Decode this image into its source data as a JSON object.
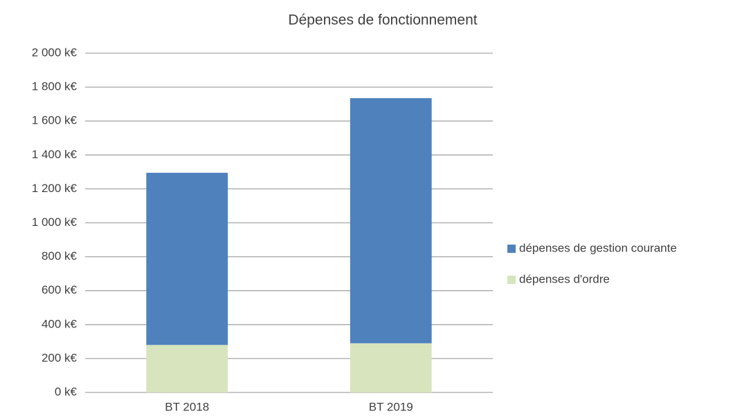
{
  "chart_data": {
    "type": "stacked_bar",
    "title": "Dépenses de fonctionnement",
    "categories": [
      "BT 2018",
      "BT 2019"
    ],
    "series": [
      {
        "name": "dépenses de gestion courante",
        "color": "#4f81bd",
        "values": [
          1015,
          1445
        ]
      },
      {
        "name": "dépenses d'ordre",
        "color": "#d7e4bd",
        "values": [
          280,
          290
        ]
      }
    ],
    "ylim": [
      0,
      2000
    ],
    "yticks": [
      {
        "value": 0,
        "label": "0 k€"
      },
      {
        "value": 200,
        "label": "200 k€"
      },
      {
        "value": 400,
        "label": "400 k€"
      },
      {
        "value": 600,
        "label": "600 k€"
      },
      {
        "value": 800,
        "label": "800 k€"
      },
      {
        "value": 1000,
        "label": "1 000 k€"
      },
      {
        "value": 1200,
        "label": "1 200 k€"
      },
      {
        "value": 1400,
        "label": "1 400 k€"
      },
      {
        "value": 1600,
        "label": "1 600 k€"
      },
      {
        "value": 1800,
        "label": "1 800 k€"
      },
      {
        "value": 2000,
        "label": "2 000 k€"
      }
    ],
    "grid": true,
    "legend": "right"
  }
}
